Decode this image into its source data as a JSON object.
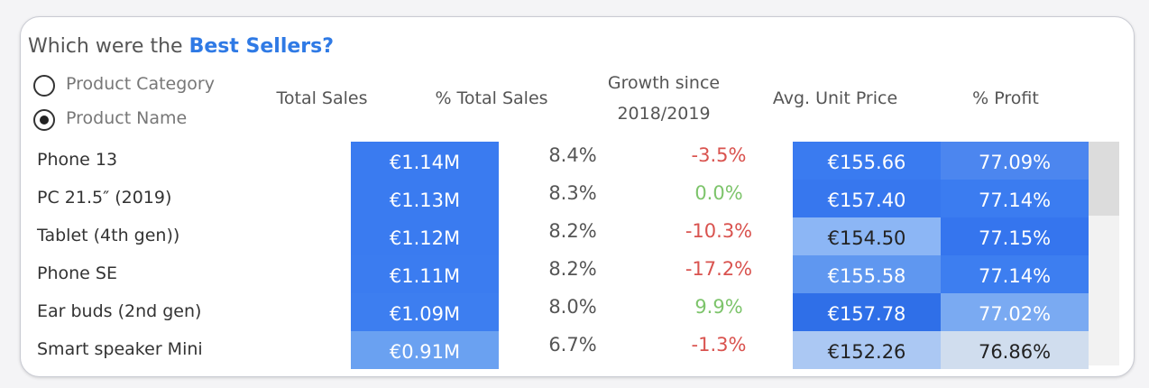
{
  "title_prefix": "Which were the ",
  "title_highlight": "Best Sellers?",
  "options": [
    {
      "label": "Product Category",
      "selected": false
    },
    {
      "label": "Product Name",
      "selected": true
    }
  ],
  "columns": [
    "Total Sales",
    "% Total Sales",
    "Growth since 2018/2019",
    "Avg. Unit Price",
    "% Profit"
  ],
  "rows": [
    {
      "name": "Phone 13",
      "cells": [
        "€1.14M",
        "8.4%",
        "-3.5%",
        "€155.66",
        "77.09%"
      ]
    },
    {
      "name": "PC 21.5″ (2019)",
      "cells": [
        "€1.13M",
        "8.3%",
        "0.0%",
        "€157.40",
        "77.14%"
      ]
    },
    {
      "name": "Tablet (4th gen))",
      "cells": [
        "€1.12M",
        "8.2%",
        "-10.3%",
        "€154.50",
        "77.15%"
      ]
    },
    {
      "name": "Phone SE",
      "cells": [
        "€1.11M",
        "8.2%",
        "-17.2%",
        "€155.58",
        "77.14%"
      ]
    },
    {
      "name": "Ear buds (2nd gen)",
      "cells": [
        "€1.09M",
        "8.0%",
        "9.9%",
        "€157.78",
        "77.02%"
      ]
    },
    {
      "name": "Smart speaker Mini",
      "cells": [
        "€0.91M",
        "6.7%",
        "-1.3%",
        "€152.26",
        "76.86%"
      ]
    }
  ],
  "heat_colors": {
    "0": [
      "#3a7bf0",
      "#3a7bf0",
      "#3a7bf0",
      "#3b7cf0",
      "#3d7ef0",
      "#6aa1f1"
    ],
    "3": [
      "#3a7bf0",
      "#3777ee",
      "#8cb6f5",
      "#5f97f0",
      "#2f6fe8",
      "#abc8f3"
    ],
    "4": [
      "#4c86ef",
      "#3b7cf0",
      "#3575ee",
      "#3d7ef0",
      "#7aaaf2",
      "#d0ddee"
    ]
  },
  "negative_color": "#d9534f",
  "positive_color": "#7dc46b"
}
